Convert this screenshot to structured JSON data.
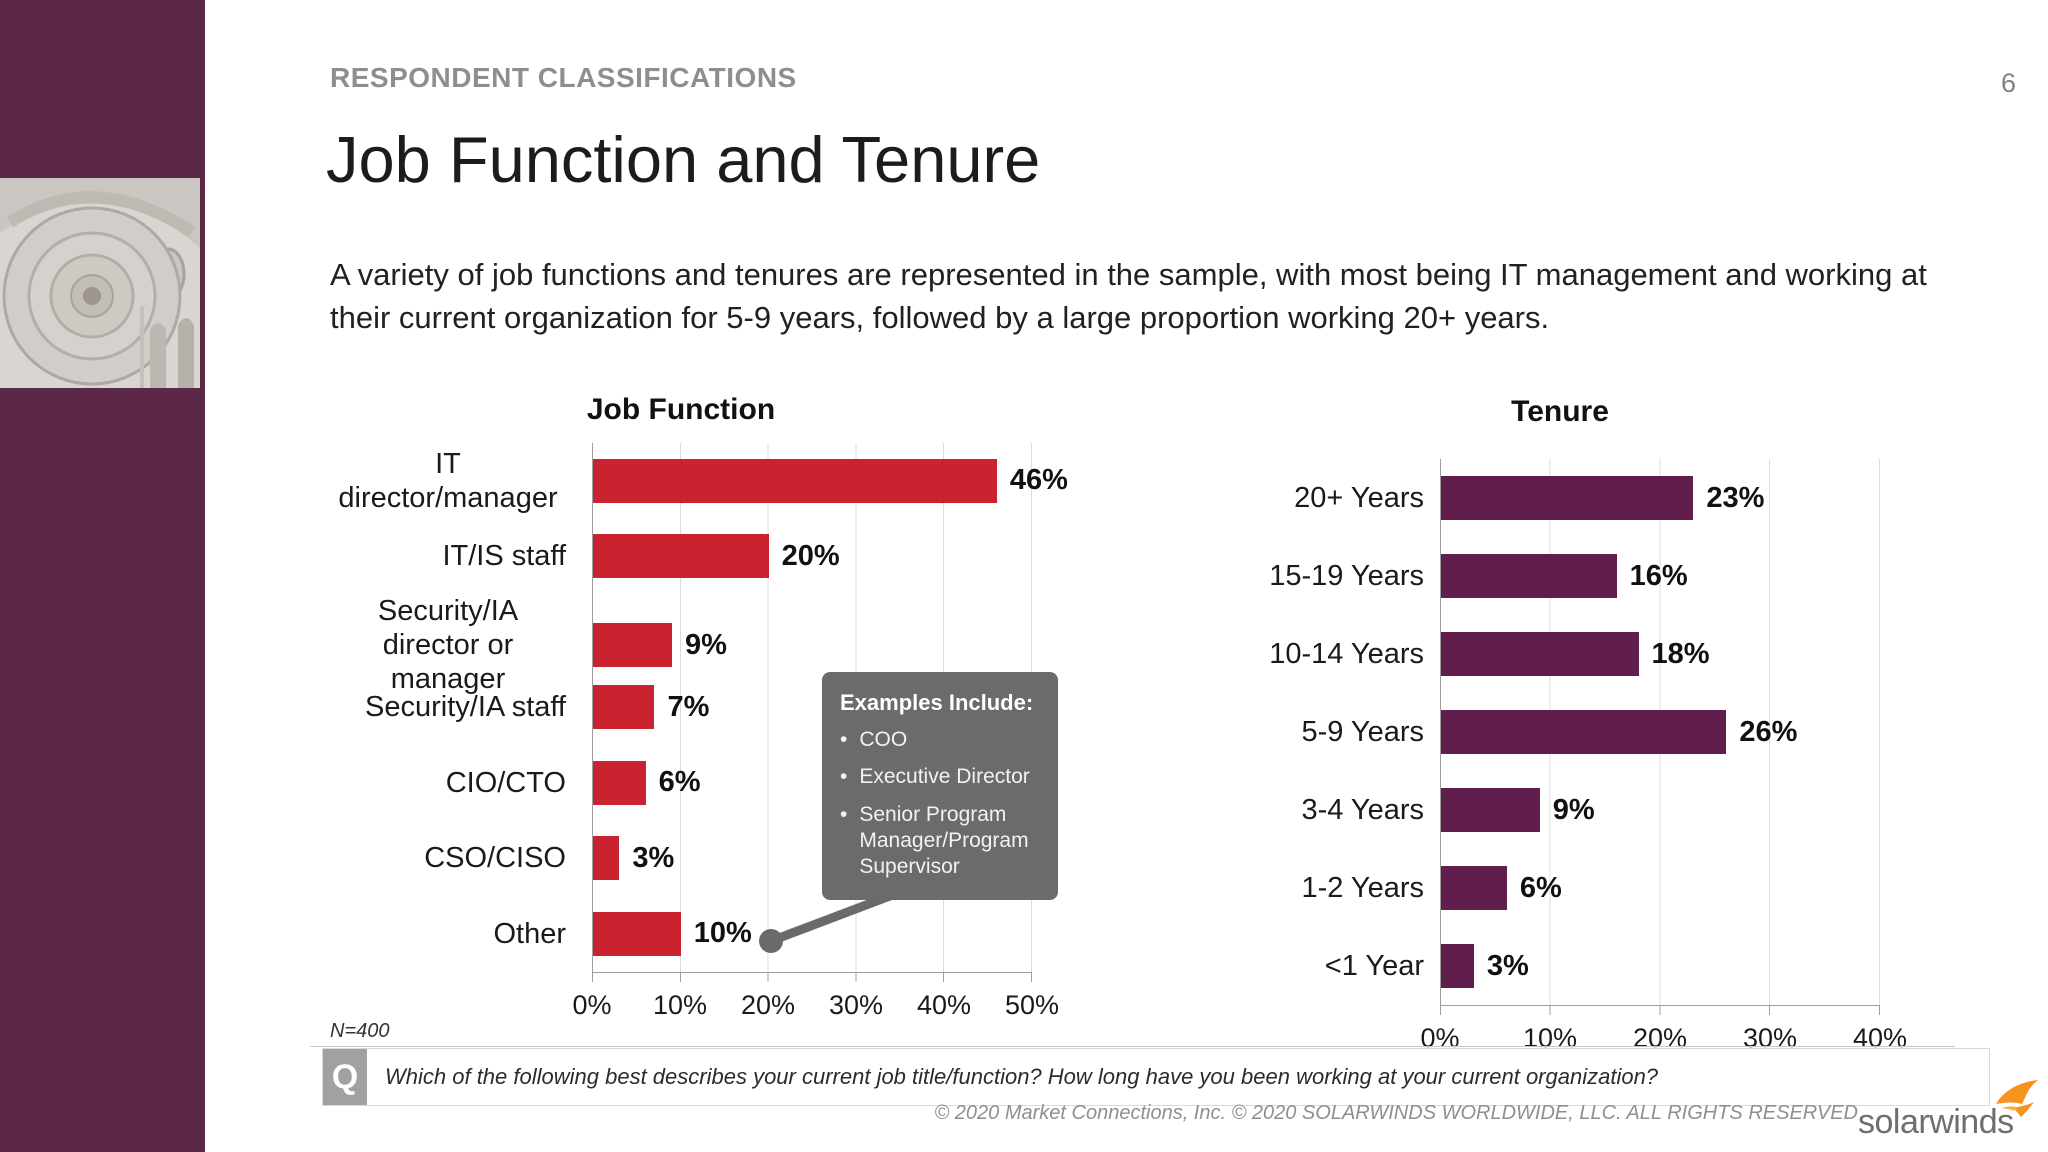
{
  "page": {
    "eyebrow": "RESPONDENT CLASSIFICATIONS",
    "number": "6",
    "title": "Job Function and Tenure",
    "paragraph": "A variety of job functions and tenures are represented in the sample, with most being IT management and working at their current organization for 5-9 years, followed by a large proportion working 20+ years."
  },
  "chart_data": [
    {
      "type": "bar",
      "orientation": "horizontal",
      "title": "Job Function",
      "categories": [
        "IT director/manager",
        "IT/IS staff",
        "Security/IA director or manager",
        "Security/IA staff",
        "CIO/CTO",
        "CSO/CISO",
        "Other"
      ],
      "values": [
        46,
        20,
        9,
        7,
        6,
        3,
        10
      ],
      "unit": "%",
      "xlim": [
        0,
        50
      ],
      "xticks": [
        "0%",
        "10%",
        "20%",
        "30%",
        "40%",
        "50%"
      ],
      "bar_color": "#C8232E",
      "grid": true,
      "legend": "none"
    },
    {
      "type": "bar",
      "orientation": "horizontal",
      "title": "Tenure",
      "categories": [
        "20+ Years",
        "15-19 Years",
        "10-14 Years",
        "5-9 Years",
        "3-4 Years",
        "1-2 Years",
        "<1 Year"
      ],
      "values": [
        23,
        16,
        18,
        26,
        9,
        6,
        3
      ],
      "unit": "%",
      "xlim": [
        0,
        40
      ],
      "xticks": [
        "0%",
        "10%",
        "20%",
        "30%",
        "40%"
      ],
      "bar_color": "#611E4D",
      "grid": true,
      "legend": "none"
    }
  ],
  "callout": {
    "heading": "Examples Include:",
    "items": [
      "COO",
      "Executive Director",
      "Senior Program Manager/Program Supervisor"
    ],
    "bullet": "•",
    "attached_to": "Other"
  },
  "footnote": "N=400",
  "question": {
    "icon": "Q",
    "text": "Which of the following best describes your current job title/function? How long have you been working at your current organization?"
  },
  "footer": {
    "copyright": "© 2020 Market Connections, Inc. © 2020 SOLARWINDS WORLDWIDE, LLC. ALL RIGHTS RESERVED",
    "logo_text": "solarwinds"
  },
  "colors": {
    "job_function_bars": "#C8232E",
    "tenure_bars": "#611E4D",
    "sidebar": "#5C2848",
    "callout_bg": "#6B6B6B",
    "logo_flame": "#F6921E"
  }
}
